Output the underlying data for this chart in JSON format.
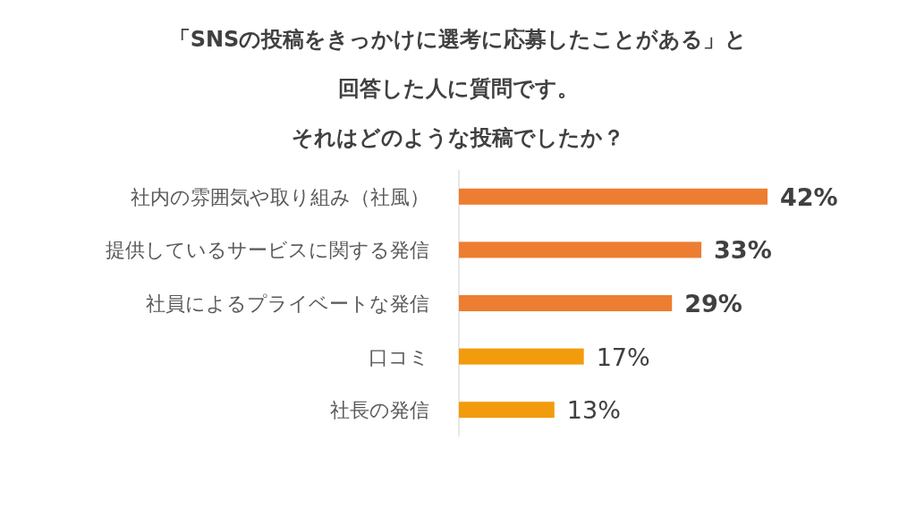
{
  "chart_data": {
    "type": "bar",
    "orientation": "horizontal",
    "title": "「SNSの投稿をきっかけに選考に応募したことがある」と回答した人に質問です。",
    "subtitle": "それはどのような投稿でしたか？",
    "categories": [
      "社内の雰囲気や取り組み（社風）",
      "提供しているサービスに関する発信",
      "社員によるプライベートな発信",
      "口コミ",
      "社長の発信"
    ],
    "values": [
      42,
      33,
      29,
      17,
      13
    ],
    "colors": [
      "#ed7d31",
      "#ed7d31",
      "#ed7d31",
      "#f29b0c",
      "#f29b0c"
    ],
    "value_labels": [
      "**42%**",
      "**33%**",
      "**29%**",
      "17%",
      "13%"
    ]
  }
}
